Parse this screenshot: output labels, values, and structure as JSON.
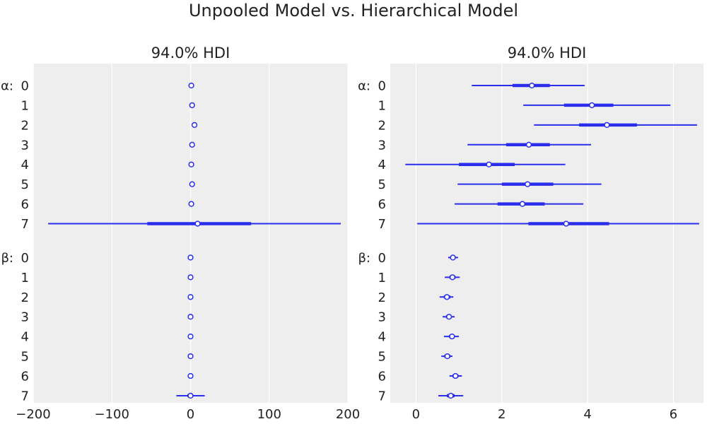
{
  "suptitle": "Unpooled Model vs. Hierarchical Model",
  "colors": {
    "series": "#2a2eec",
    "panel_bg": "#eeeeee",
    "grid": "#ffffff",
    "text": "#222222"
  },
  "chart_data": [
    {
      "type": "forest",
      "title": "94.0% HDI",
      "grid": true,
      "xlim": [
        -200,
        200
      ],
      "x_ticks": [
        -200,
        -100,
        0,
        100,
        200
      ],
      "x_tick_labels": [
        "−200",
        "−100",
        "0",
        "100",
        "200"
      ],
      "groups": [
        {
          "param": "α",
          "labels": [
            "0",
            "1",
            "2",
            "3",
            "4",
            "5",
            "6",
            "7"
          ],
          "mean": [
            1,
            2,
            5,
            2,
            1,
            2,
            1,
            9
          ],
          "iqr": [
            [
              0,
              2
            ],
            [
              1,
              3
            ],
            [
              4,
              6
            ],
            [
              1,
              3
            ],
            [
              0,
              2
            ],
            [
              1,
              3
            ],
            [
              0,
              2
            ],
            [
              -55,
              77
            ]
          ],
          "hdi": [
            [
              0,
              2
            ],
            [
              1,
              3
            ],
            [
              4,
              6
            ],
            [
              1,
              3
            ],
            [
              0,
              2
            ],
            [
              1,
              3
            ],
            [
              0,
              2
            ],
            [
              -181,
              191
            ]
          ]
        },
        {
          "param": "β",
          "labels": [
            "0",
            "1",
            "2",
            "3",
            "4",
            "5",
            "6",
            "7"
          ],
          "mean": [
            0,
            0,
            0,
            0,
            0,
            0,
            0,
            0
          ],
          "iqr": [
            [
              -0.5,
              0.5
            ],
            [
              -0.5,
              0.5
            ],
            [
              -0.5,
              0.5
            ],
            [
              -0.5,
              0.5
            ],
            [
              -0.5,
              0.5
            ],
            [
              -0.5,
              0.5
            ],
            [
              -0.5,
              0.5
            ],
            [
              -4,
              3
            ]
          ],
          "hdi": [
            [
              -0.5,
              0.5
            ],
            [
              -0.5,
              0.5
            ],
            [
              -0.5,
              0.5
            ],
            [
              -0.5,
              0.5
            ],
            [
              -0.5,
              0.5
            ],
            [
              -0.5,
              0.5
            ],
            [
              -0.5,
              0.5
            ],
            [
              -18,
              18
            ]
          ]
        }
      ]
    },
    {
      "type": "forest",
      "title": "94.0% HDI",
      "grid": true,
      "xlim": [
        -0.6,
        6.7
      ],
      "x_ticks": [
        0,
        2,
        4,
        6
      ],
      "x_tick_labels": [
        "0",
        "2",
        "4",
        "6"
      ],
      "groups": [
        {
          "param": "α",
          "labels": [
            "0",
            "1",
            "2",
            "3",
            "4",
            "5",
            "6",
            "7"
          ],
          "mean": [
            2.7,
            4.1,
            4.45,
            2.63,
            1.7,
            2.6,
            2.48,
            3.5
          ],
          "iqr": [
            [
              2.25,
              3.12
            ],
            [
              3.45,
              4.6
            ],
            [
              3.8,
              5.15
            ],
            [
              2.1,
              3.12
            ],
            [
              1.0,
              2.3
            ],
            [
              2.0,
              3.2
            ],
            [
              1.9,
              3.0
            ],
            [
              2.62,
              4.5
            ]
          ],
          "hdi": [
            [
              1.3,
              3.93
            ],
            [
              2.5,
              5.93
            ],
            [
              2.75,
              6.55
            ],
            [
              1.2,
              4.08
            ],
            [
              -0.25,
              3.48
            ],
            [
              0.97,
              4.32
            ],
            [
              0.9,
              3.9
            ],
            [
              0.03,
              6.6
            ]
          ]
        },
        {
          "param": "β",
          "labels": [
            "0",
            "1",
            "2",
            "3",
            "4",
            "5",
            "6",
            "7"
          ],
          "mean": [
            0.86,
            0.85,
            0.72,
            0.77,
            0.84,
            0.73,
            0.92,
            0.81
          ],
          "iqr": [
            [
              0.82,
              0.9
            ],
            [
              0.78,
              0.92
            ],
            [
              0.65,
              0.8
            ],
            [
              0.7,
              0.83
            ],
            [
              0.77,
              0.9
            ],
            [
              0.66,
              0.8
            ],
            [
              0.85,
              0.99
            ],
            [
              0.72,
              0.9
            ]
          ],
          "hdi": [
            [
              0.75,
              0.98
            ],
            [
              0.67,
              1.02
            ],
            [
              0.55,
              0.87
            ],
            [
              0.62,
              0.9
            ],
            [
              0.65,
              1.0
            ],
            [
              0.59,
              0.85
            ],
            [
              0.78,
              1.07
            ],
            [
              0.52,
              1.1
            ]
          ]
        }
      ]
    }
  ]
}
